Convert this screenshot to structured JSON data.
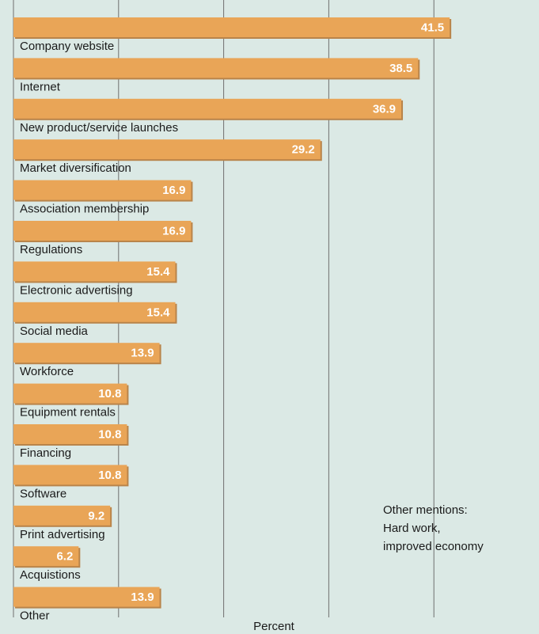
{
  "chart_data": {
    "type": "bar",
    "orientation": "horizontal",
    "categories": [
      "Company website",
      "Internet",
      "New product/service launches",
      "Market diversification",
      "Association membership",
      "Regulations",
      "Electronic advertising",
      "Social media",
      "Workforce",
      "Equipment rentals",
      "Financing",
      "Software",
      "Print advertising",
      "Acquistions",
      "Other"
    ],
    "values": [
      41.5,
      38.5,
      36.9,
      29.2,
      16.9,
      16.9,
      15.4,
      15.4,
      13.9,
      10.8,
      10.8,
      10.8,
      9.2,
      6.2,
      13.9
    ],
    "color": "#e9a557",
    "xlim": [
      0,
      50
    ],
    "xticks": [
      0,
      10,
      20,
      30,
      40
    ],
    "grid": true,
    "xlabel": "Percent",
    "annotation": [
      "Other mentions:",
      "Hard work,",
      "improved economy"
    ]
  }
}
